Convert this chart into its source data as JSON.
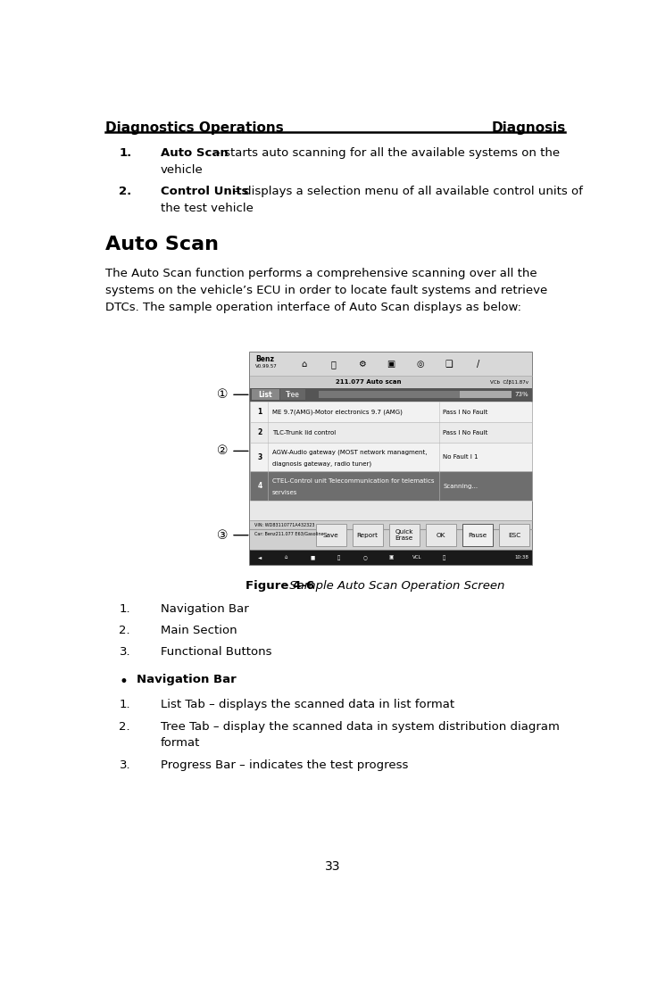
{
  "page_width": 7.27,
  "page_height": 11.06,
  "bg_color": "#ffffff",
  "header_left": "Diagnostics Operations",
  "header_right": "Diagnosis",
  "header_font_size": 11,
  "footer_text": "33",
  "section_title": "Auto Scan",
  "body_font_size": 9.5,
  "item1_bold": "Auto Scan",
  "item1_rest": " – starts auto scanning for all the available systems on the",
  "item1_rest2": "vehicle",
  "item2_bold": "Control Units",
  "item2_rest": " – displays a selection menu of all available control units of",
  "item2_rest2": "the test vehicle",
  "para_lines": [
    "The Auto Scan function performs a comprehensive scanning over all the",
    "systems on the vehicle’s ECU in order to locate fault systems and retrieve",
    "DTCs. The sample operation interface of Auto Scan displays as below:"
  ],
  "figure_caption_bold": "Figure 4-6",
  "figure_caption_italic": " Sample Auto Scan Operation Screen",
  "list2_items": [
    {
      "num": "1.",
      "text": "Navigation Bar"
    },
    {
      "num": "2.",
      "text": "Main Section"
    },
    {
      "num": "3.",
      "text": "Functional Buttons"
    }
  ],
  "bullet_bold": "Navigation Bar",
  "list3_items": [
    {
      "num": "1.",
      "text": "List Tab – displays the scanned data in list format"
    },
    {
      "num": "2.",
      "text": "Tree Tab – display the scanned data in system distribution diagram",
      "text2": "format"
    },
    {
      "num": "3.",
      "text": "Progress Bar – indicates the test progress"
    }
  ],
  "screen": {
    "rows": [
      {
        "num": "1",
        "desc": "ME 9.7(AMG)-Motor electronics 9.7 (AMG)",
        "status": "Pass I No Fault"
      },
      {
        "num": "2",
        "desc": "TLC-Trunk lid control",
        "status": "Pass I No Fault"
      },
      {
        "num": "3",
        "desc": "AGW-Audio gateway (MOST network managment,",
        "desc2": "diagnosis gateway, radio tuner)",
        "status": "No Fault I 1"
      },
      {
        "num": "4",
        "desc": "CTEL-Control unit Telecommunication for telematics",
        "desc2": "servises",
        "status": "Scanning..."
      }
    ],
    "vin1": "VIN: WD83110771A432323",
    "vin2": "Car: Benz211.077 E63/Gasoline",
    "buttons": [
      "Save",
      "Report",
      "Quick\nErase",
      "OK",
      "Pause",
      "ESC"
    ],
    "time_text": "10:38"
  }
}
